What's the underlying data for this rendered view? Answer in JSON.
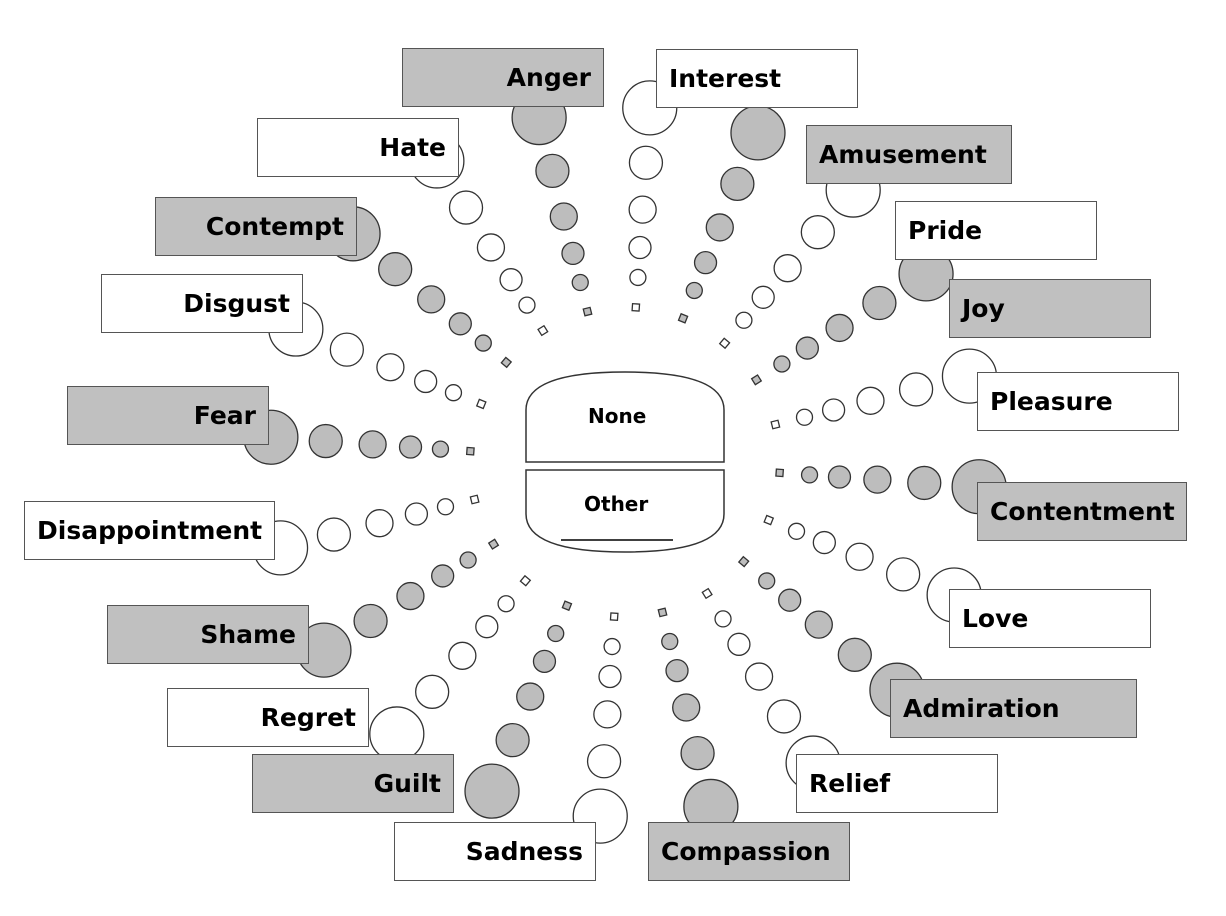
{
  "center": {
    "none_label": "None",
    "other_label": "Other"
  },
  "palette": {
    "shaded_fill": "#bdbdbd",
    "box_shaded": "#c0c0c0",
    "outline": "#333333",
    "plain_fill": "#ffffff"
  },
  "emotions": [
    {
      "key": "interest",
      "label": "Interest",
      "shaded": false
    },
    {
      "key": "amusement",
      "label": "Amusement",
      "shaded": true
    },
    {
      "key": "pride",
      "label": "Pride",
      "shaded": false
    },
    {
      "key": "joy",
      "label": "Joy",
      "shaded": true
    },
    {
      "key": "pleasure",
      "label": "Pleasure",
      "shaded": false
    },
    {
      "key": "contentment",
      "label": "Contentment",
      "shaded": true
    },
    {
      "key": "love",
      "label": "Love",
      "shaded": false
    },
    {
      "key": "admiration",
      "label": "Admiration",
      "shaded": true
    },
    {
      "key": "relief",
      "label": "Relief",
      "shaded": false
    },
    {
      "key": "compassion",
      "label": "Compassion",
      "shaded": true
    },
    {
      "key": "sadness",
      "label": "Sadness",
      "shaded": false
    },
    {
      "key": "guilt",
      "label": "Guilt",
      "shaded": true
    },
    {
      "key": "regret",
      "label": "Regret",
      "shaded": false
    },
    {
      "key": "shame",
      "label": "Shame",
      "shaded": true
    },
    {
      "key": "disappointment",
      "label": "Disappointment",
      "shaded": false
    },
    {
      "key": "fear",
      "label": "Fear",
      "shaded": true
    },
    {
      "key": "disgust",
      "label": "Disgust",
      "shaded": false
    },
    {
      "key": "contempt",
      "label": "Contempt",
      "shaded": true
    },
    {
      "key": "hate",
      "label": "Hate",
      "shaded": false
    },
    {
      "key": "anger",
      "label": "Anger",
      "shaded": true
    }
  ]
}
